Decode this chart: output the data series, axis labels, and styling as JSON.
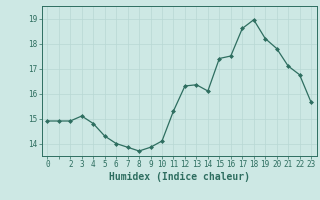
{
  "x": [
    0,
    1,
    2,
    3,
    4,
    5,
    6,
    7,
    8,
    9,
    10,
    11,
    12,
    13,
    14,
    15,
    16,
    17,
    18,
    19,
    20,
    21,
    22,
    23
  ],
  "y": [
    14.9,
    14.9,
    14.9,
    15.1,
    14.8,
    14.3,
    14.0,
    13.85,
    13.7,
    13.85,
    14.1,
    15.3,
    16.3,
    16.35,
    16.1,
    17.4,
    17.5,
    18.6,
    18.95,
    18.2,
    17.8,
    17.1,
    16.75,
    15.65
  ],
  "line_color": "#2e6e60",
  "marker": "D",
  "marker_size": 2.0,
  "bg_color": "#cde8e4",
  "grid_color": "#b8d8d4",
  "axis_color": "#2e6e60",
  "text_color": "#2e6e60",
  "ylabel_values": [
    14,
    15,
    16,
    17,
    18,
    19
  ],
  "xlabel": "Humidex (Indice chaleur)",
  "ylim": [
    13.5,
    19.5
  ],
  "xlim": [
    -0.5,
    23.5
  ],
  "tick_fontsize": 5.5,
  "label_fontsize": 7.0
}
